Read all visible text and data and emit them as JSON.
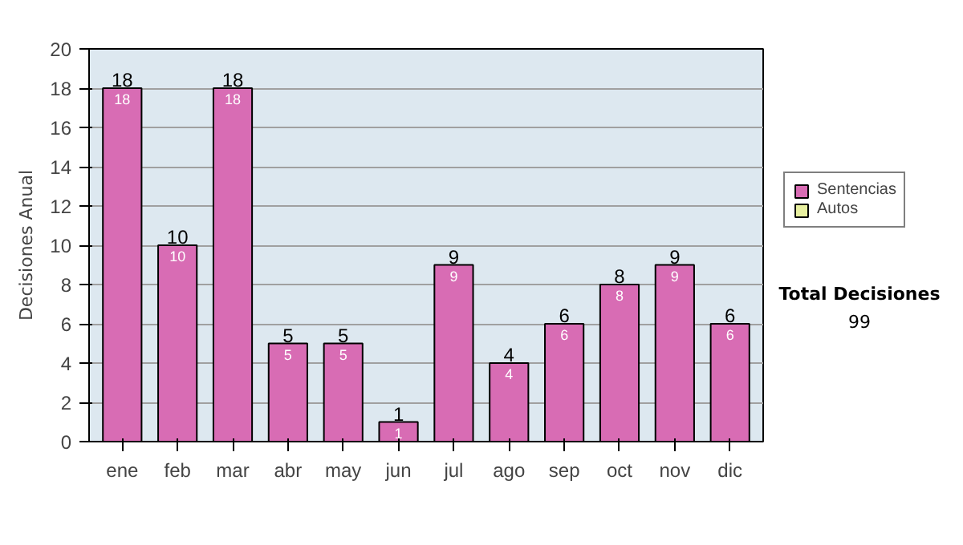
{
  "chart_data": {
    "type": "bar",
    "ylabel": "Decisiones Anual",
    "categories": [
      "ene",
      "feb",
      "mar",
      "abr",
      "may",
      "jun",
      "jul",
      "ago",
      "sep",
      "oct",
      "nov",
      "dic"
    ],
    "series": [
      {
        "name": "Sentencias",
        "color": "#d86cb4",
        "values": [
          18,
          10,
          18,
          5,
          5,
          1,
          9,
          4,
          6,
          8,
          9,
          6
        ]
      },
      {
        "name": "Autos",
        "color": "#e8f0a0",
        "values": [
          null,
          null,
          null,
          null,
          null,
          null,
          null,
          null,
          null,
          null,
          null,
          null
        ]
      }
    ],
    "stacked": true,
    "data_labels": true,
    "totals": [
      "18",
      "10",
      "18",
      "5",
      "5",
      "1",
      "9",
      "4",
      "6",
      "8",
      "9",
      "6"
    ],
    "ylim": [
      0,
      20
    ],
    "yticks": [
      0,
      2,
      4,
      6,
      8,
      10,
      12,
      14,
      16,
      18,
      20
    ],
    "grid": "y",
    "legend": "right",
    "annotations": [
      "Total Decisiones",
      "99"
    ]
  }
}
